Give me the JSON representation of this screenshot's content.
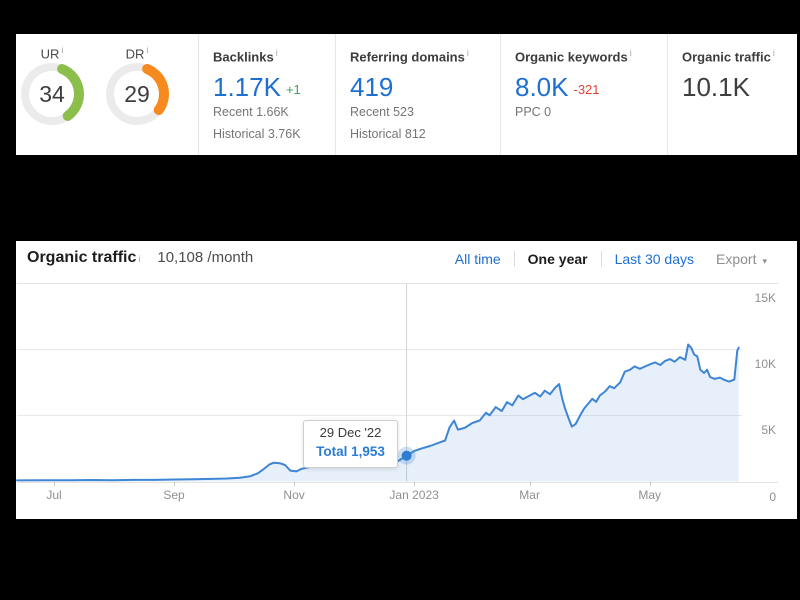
{
  "icons": {
    "info": "i",
    "export_caret": "▾"
  },
  "overview": {
    "gauges": [
      {
        "label": "UR",
        "value": 34,
        "color": "#8bbe4a"
      },
      {
        "label": "DR",
        "value": 29,
        "color": "#f68a1f"
      }
    ],
    "stats": [
      {
        "label": "Backlinks",
        "value": "1.17K",
        "delta": "+1",
        "delta_color": "#3ba55d",
        "subs": [
          "Recent 1.66K",
          "Historical 3.76K"
        ]
      },
      {
        "label": "Referring domains",
        "value": "419",
        "delta": "",
        "subs": [
          "Recent 523",
          "Historical 812"
        ]
      },
      {
        "label": "Organic keywords",
        "value": "8.0K",
        "delta": "-321",
        "delta_color": "#dc4437",
        "subs": [
          "PPC 0"
        ]
      },
      {
        "label": "Organic traffic",
        "value": "10.1K",
        "delta": "",
        "subs": []
      }
    ]
  },
  "traffic_panel": {
    "title": "Organic traffic",
    "subtitle": "10,108 /month",
    "tabs": [
      {
        "label": "All time",
        "active": false
      },
      {
        "label": "One year",
        "active": true
      },
      {
        "label": "Last 30 days",
        "active": false
      }
    ],
    "export_label": "Export",
    "tooltip": {
      "date": "29 Dec '22",
      "total": "Total 1,953"
    },
    "chart_data": {
      "type": "area",
      "title": "Organic traffic, one year",
      "ylim": [
        0,
        15000
      ],
      "grid": true,
      "legend": false,
      "line_color": "#3e86d5",
      "fill_color": "rgba(62,134,213,0.13)",
      "yticks": [
        {
          "value": 0,
          "label": "0"
        },
        {
          "value": 5000,
          "label": "5K"
        },
        {
          "value": 10000,
          "label": "10K"
        },
        {
          "value": 15000,
          "label": "15K"
        }
      ],
      "xticks": [
        {
          "pos": 0.049,
          "label": "Jul"
        },
        {
          "pos": 0.208,
          "label": "Sep"
        },
        {
          "pos": 0.367,
          "label": "Nov"
        },
        {
          "pos": 0.526,
          "label": "Jan 2023"
        },
        {
          "pos": 0.679,
          "label": "Mar"
        },
        {
          "pos": 0.838,
          "label": "May"
        }
      ],
      "marker": {
        "pos": 0.516,
        "value": 1953,
        "date": "29 Dec '22",
        "total": 1953
      },
      "points": [
        [
          0.0,
          80
        ],
        [
          0.033,
          90
        ],
        [
          0.049,
          100
        ],
        [
          0.073,
          90
        ],
        [
          0.099,
          110
        ],
        [
          0.126,
          100
        ],
        [
          0.152,
          120
        ],
        [
          0.181,
          120
        ],
        [
          0.208,
          150
        ],
        [
          0.232,
          170
        ],
        [
          0.258,
          200
        ],
        [
          0.278,
          230
        ],
        [
          0.295,
          280
        ],
        [
          0.309,
          400
        ],
        [
          0.319,
          620
        ],
        [
          0.327,
          950
        ],
        [
          0.334,
          1280
        ],
        [
          0.34,
          1420
        ],
        [
          0.348,
          1380
        ],
        [
          0.355,
          1250
        ],
        [
          0.362,
          820
        ],
        [
          0.37,
          760
        ],
        [
          0.377,
          960
        ],
        [
          0.388,
          1100
        ],
        [
          0.401,
          1160
        ],
        [
          0.415,
          1220
        ],
        [
          0.428,
          1160
        ],
        [
          0.441,
          1210
        ],
        [
          0.454,
          1180
        ],
        [
          0.468,
          1230
        ],
        [
          0.481,
          1260
        ],
        [
          0.494,
          1360
        ],
        [
          0.505,
          1560
        ],
        [
          0.516,
          1953
        ],
        [
          0.526,
          2300
        ],
        [
          0.536,
          2500
        ],
        [
          0.547,
          2680
        ],
        [
          0.558,
          2920
        ],
        [
          0.567,
          3100
        ],
        [
          0.573,
          4100
        ],
        [
          0.579,
          4600
        ],
        [
          0.584,
          3920
        ],
        [
          0.593,
          4050
        ],
        [
          0.603,
          4420
        ],
        [
          0.613,
          4620
        ],
        [
          0.621,
          5200
        ],
        [
          0.626,
          5000
        ],
        [
          0.634,
          5620
        ],
        [
          0.642,
          5320
        ],
        [
          0.649,
          6000
        ],
        [
          0.656,
          5760
        ],
        [
          0.664,
          6500
        ],
        [
          0.67,
          6220
        ],
        [
          0.678,
          6460
        ],
        [
          0.686,
          6700
        ],
        [
          0.693,
          6420
        ],
        [
          0.699,
          6860
        ],
        [
          0.706,
          6600
        ],
        [
          0.713,
          7100
        ],
        [
          0.718,
          7360
        ],
        [
          0.722,
          6300
        ],
        [
          0.726,
          5500
        ],
        [
          0.731,
          4700
        ],
        [
          0.735,
          4150
        ],
        [
          0.74,
          4350
        ],
        [
          0.746,
          5000
        ],
        [
          0.751,
          5500
        ],
        [
          0.756,
          5850
        ],
        [
          0.762,
          6250
        ],
        [
          0.767,
          6020
        ],
        [
          0.772,
          6500
        ],
        [
          0.779,
          6800
        ],
        [
          0.785,
          7200
        ],
        [
          0.791,
          7050
        ],
        [
          0.799,
          7500
        ],
        [
          0.805,
          8300
        ],
        [
          0.812,
          8450
        ],
        [
          0.818,
          8700
        ],
        [
          0.825,
          8520
        ],
        [
          0.832,
          8700
        ],
        [
          0.838,
          8850
        ],
        [
          0.845,
          9000
        ],
        [
          0.852,
          8800
        ],
        [
          0.858,
          9100
        ],
        [
          0.865,
          9250
        ],
        [
          0.871,
          9050
        ],
        [
          0.878,
          9400
        ],
        [
          0.885,
          9200
        ],
        [
          0.889,
          10350
        ],
        [
          0.893,
          10100
        ],
        [
          0.897,
          9600
        ],
        [
          0.901,
          9450
        ],
        [
          0.905,
          8450
        ],
        [
          0.91,
          8200
        ],
        [
          0.914,
          8450
        ],
        [
          0.918,
          7900
        ],
        [
          0.924,
          7750
        ],
        [
          0.931,
          7850
        ],
        [
          0.936,
          7700
        ],
        [
          0.943,
          7550
        ],
        [
          0.95,
          7700
        ],
        [
          0.954,
          9900
        ],
        [
          0.956,
          10108
        ]
      ]
    }
  }
}
